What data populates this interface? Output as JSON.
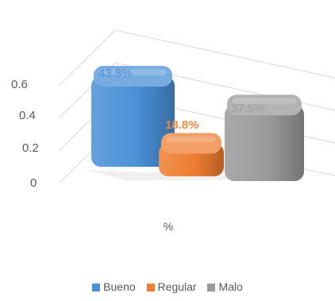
{
  "chart_data": {
    "type": "bar",
    "categories": [
      "%"
    ],
    "series": [
      {
        "name": "Bueno",
        "values": [
          0.438
        ],
        "label": "43.8%",
        "color": "#4a90d6"
      },
      {
        "name": "Regular",
        "values": [
          0.188
        ],
        "label": "18.8%",
        "color": "#ed7d31"
      },
      {
        "name": "Malo",
        "values": [
          0.375
        ],
        "label": "37.5%",
        "color": "#9a9a9a"
      }
    ],
    "ylim": [
      0,
      0.6
    ],
    "yticks": [
      "0",
      "0.2",
      "0.4",
      "0.6"
    ],
    "grid": true,
    "legend_position": "bottom",
    "style": "3d"
  }
}
